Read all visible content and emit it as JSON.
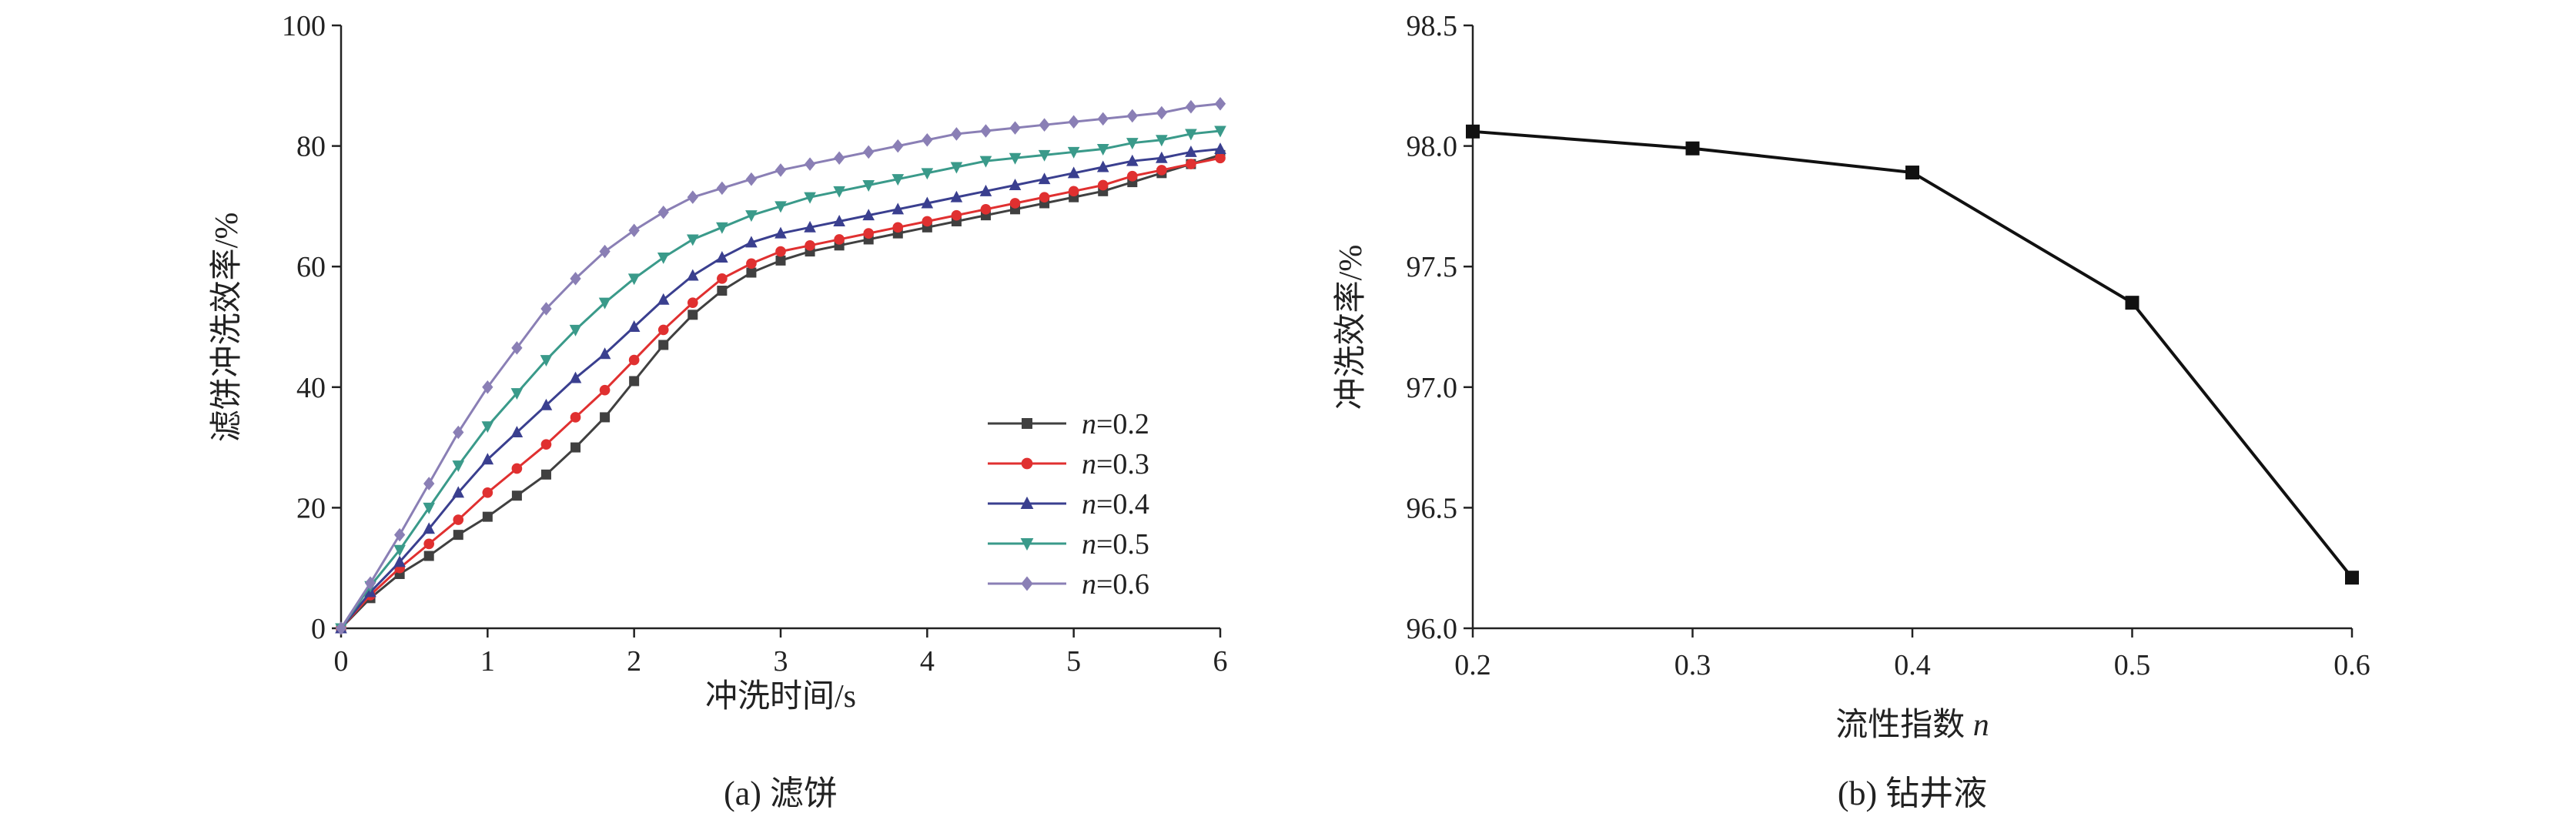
{
  "chart_data": [
    {
      "type": "line",
      "panel_caption": "(a) 滤饼",
      "xlabel": "冲洗时间/s",
      "ylabel": "滤饼冲洗效率/%",
      "xlim": [
        0,
        6
      ],
      "ylim": [
        0,
        100
      ],
      "xticks": [
        "0",
        "1",
        "2",
        "3",
        "4",
        "5",
        "6"
      ],
      "yticks": [
        "0",
        "20",
        "40",
        "60",
        "80",
        "100"
      ],
      "legend_position": "center-right",
      "x": [
        0,
        0.2,
        0.4,
        0.6,
        0.8,
        1.0,
        1.2,
        1.4,
        1.6,
        1.8,
        2.0,
        2.2,
        2.4,
        2.6,
        2.8,
        3.0,
        3.2,
        3.4,
        3.6,
        3.8,
        4.0,
        4.2,
        4.4,
        4.6,
        4.8,
        5.0,
        5.2,
        5.4,
        5.6,
        5.8,
        6.0
      ],
      "series": [
        {
          "name": "n=0.2",
          "var": "n",
          "eq": "=0.2",
          "color": "#404040",
          "marker": "square",
          "values": [
            0,
            5,
            9,
            12,
            15.5,
            18.5,
            22,
            25.5,
            30,
            35,
            41,
            47,
            52,
            56,
            59,
            61,
            62.5,
            63.5,
            64.5,
            65.5,
            66.5,
            67.5,
            68.5,
            69.5,
            70.5,
            71.5,
            72.5,
            74,
            75.5,
            77,
            78.5
          ]
        },
        {
          "name": "n=0.3",
          "var": "n",
          "eq": "=0.3",
          "color": "#e03030",
          "marker": "circle",
          "values": [
            0,
            5.5,
            10,
            14,
            18,
            22.5,
            26.5,
            30.5,
            35,
            39.5,
            44.5,
            49.5,
            54,
            58,
            60.5,
            62.5,
            63.5,
            64.5,
            65.5,
            66.5,
            67.5,
            68.5,
            69.5,
            70.5,
            71.5,
            72.5,
            73.5,
            75,
            76,
            77,
            78
          ]
        },
        {
          "name": "n=0.4",
          "var": "n",
          "eq": "=0.4",
          "color": "#3a3f8f",
          "marker": "triangle",
          "values": [
            0,
            6,
            11,
            16.5,
            22.5,
            28,
            32.5,
            37,
            41.5,
            45.5,
            50,
            54.5,
            58.5,
            61.5,
            64,
            65.5,
            66.5,
            67.5,
            68.5,
            69.5,
            70.5,
            71.5,
            72.5,
            73.5,
            74.5,
            75.5,
            76.5,
            77.5,
            78,
            79,
            79.5
          ]
        },
        {
          "name": "n=0.5",
          "var": "n",
          "eq": "=0.5",
          "color": "#3a9a8a",
          "marker": "triangle-down",
          "values": [
            0,
            7,
            13,
            20,
            27,
            33.5,
            39,
            44.5,
            49.5,
            54,
            58,
            61.5,
            64.5,
            66.5,
            68.5,
            70,
            71.5,
            72.5,
            73.5,
            74.5,
            75.5,
            76.5,
            77.5,
            78,
            78.5,
            79,
            79.5,
            80.5,
            81,
            82,
            82.5
          ]
        },
        {
          "name": "n=0.6",
          "var": "n",
          "eq": "=0.6",
          "color": "#8a7fb5",
          "marker": "diamond",
          "values": [
            0,
            7.5,
            15.5,
            24,
            32.5,
            40,
            46.5,
            53,
            58,
            62.5,
            66,
            69,
            71.5,
            73,
            74.5,
            76,
            77,
            78,
            79,
            80,
            81,
            82,
            82.5,
            83,
            83.5,
            84,
            84.5,
            85,
            85.5,
            86.5,
            87
          ]
        }
      ]
    },
    {
      "type": "line",
      "panel_caption": "(b) 钻井液",
      "xlabel_text": "流性指数 ",
      "xlabel_var": "n",
      "ylabel": "冲洗效率/%",
      "xlim": [
        0.2,
        0.6
      ],
      "ylim": [
        96.0,
        98.5
      ],
      "xticks": [
        "0.2",
        "0.3",
        "0.4",
        "0.5",
        "0.6"
      ],
      "yticks": [
        "96.0",
        "96.5",
        "97.0",
        "97.5",
        "98.0",
        "98.5"
      ],
      "x": [
        0.2,
        0.3,
        0.4,
        0.5,
        0.6
      ],
      "series": [
        {
          "color": "#111111",
          "marker": "square",
          "values": [
            98.06,
            97.99,
            97.89,
            97.35,
            96.21
          ]
        }
      ]
    }
  ]
}
